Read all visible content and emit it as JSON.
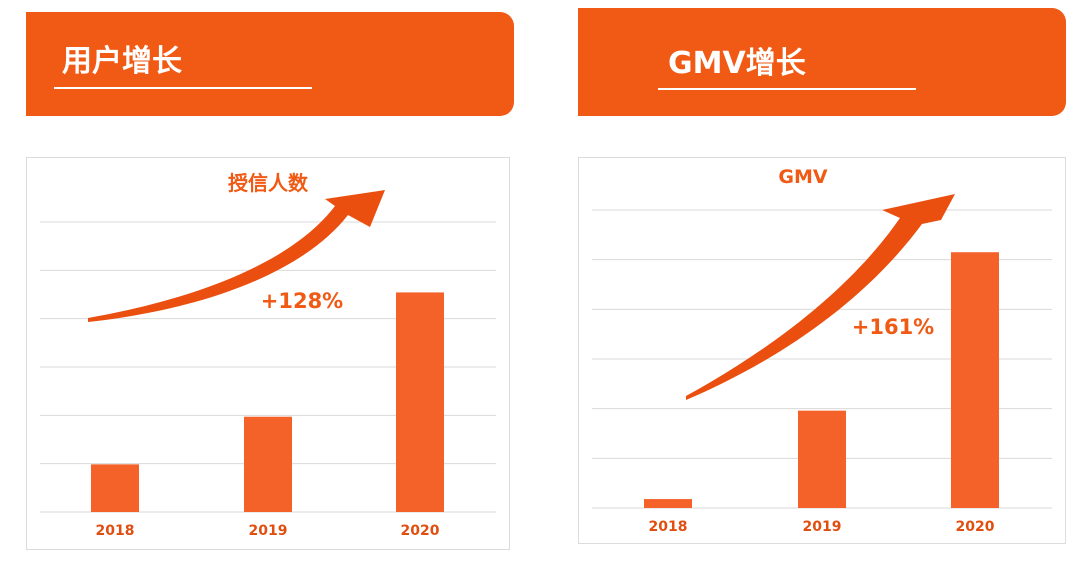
{
  "header_left": {
    "title": "用户增长"
  },
  "header_right": {
    "title": "GMV增长"
  },
  "colors": {
    "banner": "#f05a14",
    "bar": "#f4622a",
    "arrow": "#ea4f10",
    "text": "#f05a14",
    "grid": "#d9d9d9",
    "tick": "#e04e10"
  },
  "chart_data": [
    {
      "type": "bar",
      "title": "授信人数",
      "categories": [
        "2018",
        "2019",
        "2020"
      ],
      "values": [
        11.5,
        23,
        53
      ],
      "ylim": [
        0,
        70
      ],
      "annotation": "+128%",
      "grid": true
    },
    {
      "type": "bar",
      "title": "GMV",
      "categories": [
        "2018",
        "2019",
        "2020"
      ],
      "values": [
        1.8,
        19.6,
        51.5
      ],
      "ylim": [
        0,
        60
      ],
      "annotation": "+161%",
      "grid": true
    }
  ]
}
